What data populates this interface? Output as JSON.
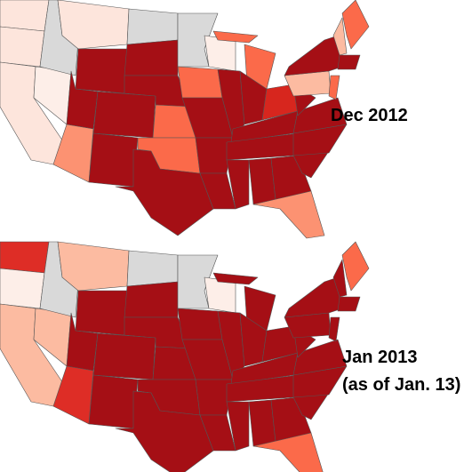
{
  "maps": [
    {
      "label": "Dec 2012"
    },
    {
      "label": "Jan 2013",
      "sublabel": "(as of Jan. 13)"
    }
  ]
}
